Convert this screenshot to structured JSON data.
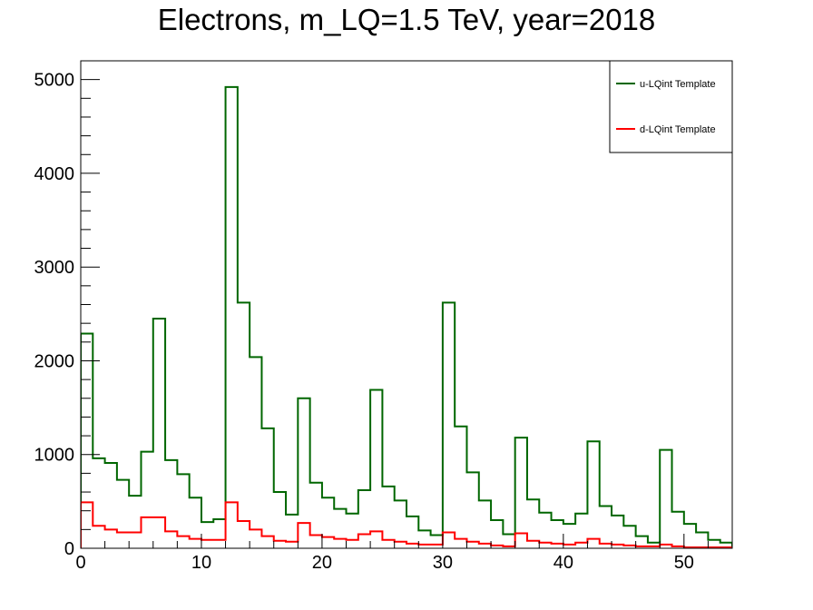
{
  "chart_data": {
    "type": "histogram",
    "title": "Electrons, m_LQ=1.5 TeV, year=2018",
    "xlabel": "",
    "ylabel": "",
    "xlim": [
      0,
      54
    ],
    "ylim": [
      0,
      5200
    ],
    "xticks": [
      0,
      10,
      20,
      30,
      40,
      50
    ],
    "yticks": [
      0,
      1000,
      2000,
      3000,
      4000,
      5000
    ],
    "bin_edges": [
      0,
      1,
      2,
      3,
      4,
      5,
      6,
      7,
      8,
      9,
      10,
      11,
      12,
      13,
      14,
      15,
      16,
      17,
      18,
      19,
      20,
      21,
      22,
      23,
      24,
      25,
      26,
      27,
      28,
      29,
      30,
      31,
      32,
      33,
      34,
      35,
      36,
      37,
      38,
      39,
      40,
      41,
      42,
      43,
      44,
      45,
      46,
      47,
      48,
      49,
      50,
      51,
      52,
      53,
      54
    ],
    "legend_position": "top-right",
    "series": [
      {
        "name": "u-LQint Template",
        "color": "#006600",
        "values": [
          2290,
          960,
          910,
          730,
          560,
          1030,
          2450,
          940,
          790,
          540,
          280,
          310,
          4920,
          2620,
          2040,
          1280,
          600,
          360,
          1600,
          700,
          540,
          420,
          370,
          620,
          1690,
          660,
          510,
          340,
          190,
          140,
          2620,
          1300,
          810,
          510,
          300,
          150,
          1180,
          520,
          380,
          300,
          260,
          370,
          1140,
          450,
          350,
          240,
          130,
          60,
          1050,
          390,
          260,
          170,
          90,
          60
        ]
      },
      {
        "name": "d-LQint Template",
        "color": "#ff0000",
        "values": [
          490,
          240,
          200,
          170,
          170,
          330,
          330,
          180,
          130,
          100,
          90,
          90,
          490,
          290,
          200,
          130,
          80,
          70,
          270,
          140,
          120,
          100,
          90,
          150,
          180,
          90,
          70,
          50,
          40,
          40,
          170,
          100,
          70,
          50,
          30,
          20,
          160,
          80,
          60,
          50,
          40,
          60,
          100,
          50,
          40,
          30,
          20,
          20,
          40,
          20,
          10,
          10,
          10,
          10
        ]
      }
    ]
  }
}
